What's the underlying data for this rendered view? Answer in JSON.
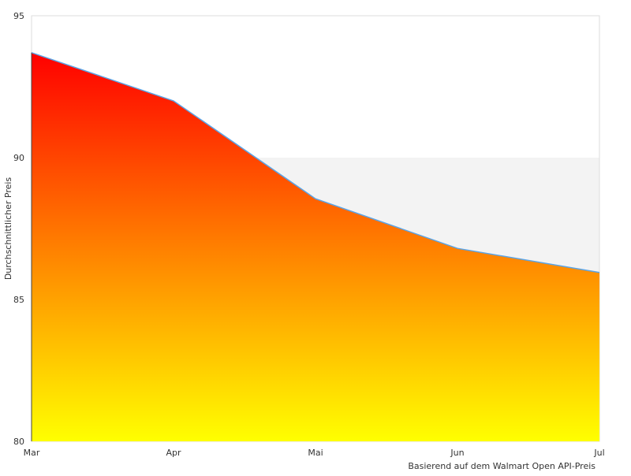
{
  "chart_data": {
    "type": "area",
    "categories": [
      "Mar",
      "Apr",
      "Mai",
      "Jun",
      "Jul"
    ],
    "series": [
      {
        "values": [
          93.7,
          92.0,
          88.55,
          86.8,
          85.95
        ]
      }
    ],
    "ylabel": "Durchschnittlicher Preis",
    "xlabel": "",
    "ylim": [
      80,
      95
    ],
    "yticks": [
      80,
      85,
      90,
      95
    ],
    "grid": false,
    "bands": [
      {
        "from": 85,
        "to": 90,
        "color": "#f3f3f3"
      }
    ],
    "fill_gradient": {
      "top": "#ff0000",
      "bottom": "#ffff00"
    },
    "line_color": "#5ba4e6",
    "credit": "Basierend auf dem Walmart Open API-Preis"
  }
}
